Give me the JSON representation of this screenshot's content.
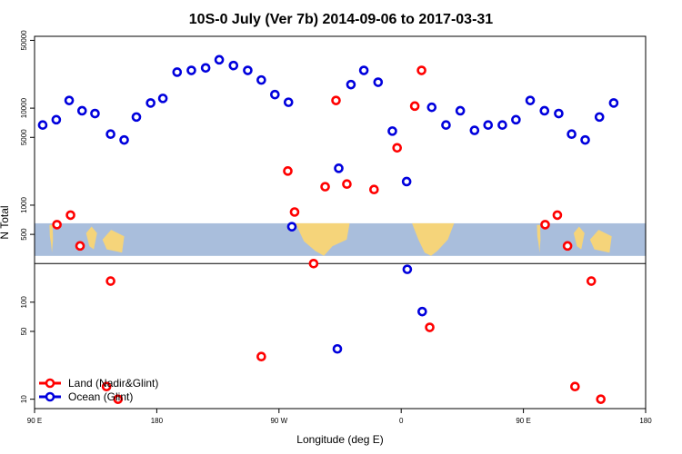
{
  "chart_data": {
    "type": "scatter",
    "title": "10S-0 July (Ver 7b)   2014-09-06 to 2017-03-31",
    "xlabel": "Longitude (deg E)",
    "ylabel": "N Total",
    "y_scale": "log",
    "xlim": [
      90,
      540
    ],
    "ylim": [
      8,
      55000
    ],
    "x_ticks": [
      {
        "value": 90,
        "label": "90 E"
      },
      {
        "value": 180,
        "label": "180"
      },
      {
        "value": 270,
        "label": "90 W"
      },
      {
        "value": 360,
        "label": "0"
      },
      {
        "value": 450,
        "label": "90 E"
      },
      {
        "value": 540,
        "label": "180"
      }
    ],
    "y_ticks": [
      {
        "value": 10,
        "label": "10"
      },
      {
        "value": 50,
        "label": "50"
      },
      {
        "value": 100,
        "label": "100"
      },
      {
        "value": 500,
        "label": "500"
      },
      {
        "value": 1000,
        "label": "1000"
      },
      {
        "value": 5000,
        "label": "5000"
      },
      {
        "value": 10000,
        "label": "10000"
      },
      {
        "value": 50000,
        "label": "50000"
      }
    ],
    "reference_line_y": 250,
    "map_strip": {
      "y_top": 650,
      "y_bottom": 300,
      "ocean_color": "#a9bedc",
      "land_color": "#f5d47a"
    },
    "series": [
      {
        "name": "Land (Nadir&Glint)",
        "color": "#ff0000",
        "points": [
          [
            106.5,
            630
          ],
          [
            116.5,
            790
          ],
          [
            123.5,
            380
          ],
          [
            146,
            165
          ],
          [
            151.5,
            10
          ],
          [
            143,
            13.5
          ],
          [
            257,
            27.5
          ],
          [
            276.5,
            2250
          ],
          [
            281.5,
            850
          ],
          [
            295.5,
            250
          ],
          [
            304,
            1550
          ],
          [
            312,
            12000
          ],
          [
            320,
            1650
          ],
          [
            340,
            1450
          ],
          [
            357,
            3900
          ],
          [
            370,
            10500
          ],
          [
            375,
            24500
          ],
          [
            381,
            55
          ],
          [
            466,
            630
          ],
          [
            475,
            790
          ],
          [
            482.5,
            380
          ],
          [
            488,
            13.5
          ],
          [
            500,
            165
          ],
          [
            507,
            10
          ]
        ]
      },
      {
        "name": "Ocean (Glint)",
        "color": "#0000dd",
        "points": [
          [
            96,
            6700
          ],
          [
            106,
            7600
          ],
          [
            115.5,
            12000
          ],
          [
            125,
            9400
          ],
          [
            134.5,
            8800
          ],
          [
            146,
            5400
          ],
          [
            156,
            4700
          ],
          [
            165,
            8100
          ],
          [
            175.5,
            11300
          ],
          [
            184.5,
            12600
          ],
          [
            195,
            23500
          ],
          [
            205.5,
            24500
          ],
          [
            216,
            26000
          ],
          [
            226,
            31500
          ],
          [
            236.5,
            27500
          ],
          [
            247,
            24500
          ],
          [
            257,
            19500
          ],
          [
            267,
            13800
          ],
          [
            277,
            11500
          ],
          [
            279.5,
            600
          ],
          [
            314,
            2400
          ],
          [
            323,
            17500
          ],
          [
            332.5,
            24500
          ],
          [
            343,
            18500
          ],
          [
            353.5,
            5800
          ],
          [
            364,
            1750
          ],
          [
            382.5,
            10200
          ],
          [
            393,
            6700
          ],
          [
            403.5,
            9400
          ],
          [
            414,
            5900
          ],
          [
            424,
            6700
          ],
          [
            434.5,
            6700
          ],
          [
            444.5,
            7600
          ],
          [
            455,
            12000
          ],
          [
            465.5,
            9400
          ],
          [
            476,
            8800
          ],
          [
            485.5,
            5400
          ],
          [
            495.5,
            4700
          ],
          [
            506,
            8100
          ],
          [
            516.5,
            11300
          ],
          [
            313,
            33
          ],
          [
            364.5,
            218
          ],
          [
            375.5,
            80
          ]
        ]
      }
    ],
    "legend": {
      "position": "bottom-left"
    }
  }
}
